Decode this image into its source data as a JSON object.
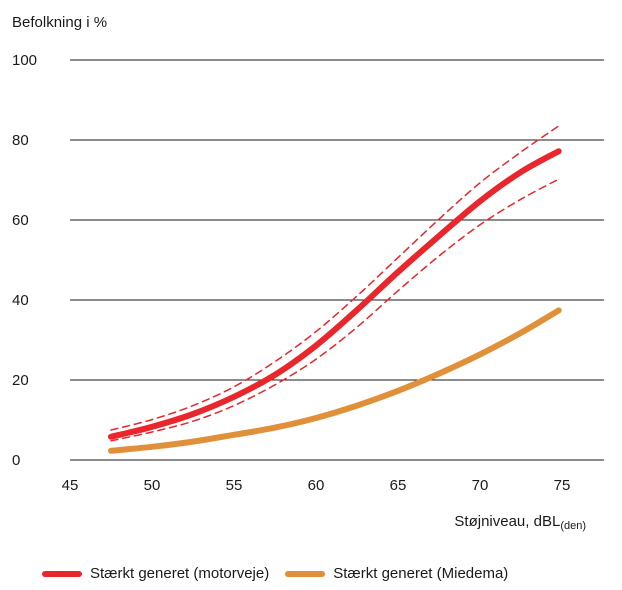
{
  "chart_data": {
    "type": "line",
    "ylabel": "Befolkning i %",
    "xlabel": "Støjniveau, dBL",
    "xlabel_sub": "(den)",
    "xlim": [
      45,
      77.5
    ],
    "ylim": [
      0,
      100
    ],
    "x_ticks": [
      "45",
      "50",
      "55",
      "60",
      "65",
      "70",
      "75"
    ],
    "y_ticks": [
      "0",
      "20",
      "40",
      "60",
      "80",
      "100"
    ],
    "grid": "horizontal",
    "legend_position": "bottom",
    "colors": {
      "motorveje": "#e8262c",
      "miedema": "#e09038",
      "axis": "#1a1a1a"
    },
    "series": [
      {
        "name": "Stærkt generet (motorveje)",
        "key": "motorveje",
        "style": "solid",
        "x": [
          47.5,
          50,
          52.5,
          55,
          57.5,
          60,
          62.5,
          65,
          67.5,
          70,
          72.5,
          74.8
        ],
        "values": [
          5.8,
          8.3,
          11.5,
          15.8,
          21.3,
          28.6,
          37.5,
          47,
          56,
          64.7,
          72,
          77.2
        ]
      },
      {
        "name": "",
        "key": "motorveje_upper",
        "style": "dashed",
        "x": [
          47.5,
          50,
          52.5,
          55,
          57.5,
          60,
          62.5,
          65,
          67.5,
          70,
          72.5,
          74.8
        ],
        "values": [
          7.5,
          10.1,
          13.6,
          18.3,
          24.6,
          32.1,
          41,
          50.6,
          60.2,
          69.3,
          77,
          83.5
        ]
      },
      {
        "name": "",
        "key": "motorveje_lower",
        "style": "dashed",
        "x": [
          47.5,
          50,
          52.5,
          55,
          57.5,
          60,
          62.5,
          65,
          67.5,
          70,
          72.5,
          74.8
        ],
        "values": [
          4.8,
          7,
          9.7,
          13.6,
          18.8,
          25.2,
          33.2,
          42.3,
          51,
          58.8,
          65.2,
          70.2
        ]
      },
      {
        "name": "Stærkt generet (Miedema)",
        "key": "miedema",
        "style": "solid",
        "x": [
          47.5,
          50,
          52.5,
          55,
          57.5,
          60,
          62.5,
          65,
          67.5,
          70,
          72.5,
          74.8
        ],
        "values": [
          2.3,
          3.3,
          4.6,
          6.3,
          8.1,
          10.5,
          13.6,
          17.3,
          21.6,
          26.4,
          31.8,
          37.4
        ]
      }
    ]
  }
}
